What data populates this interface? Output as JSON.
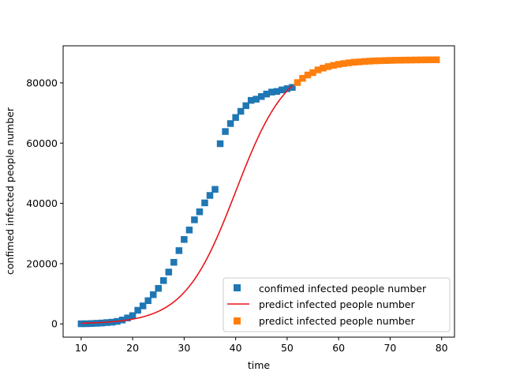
{
  "chart_data": {
    "type": "scatter",
    "xlabel": "time",
    "ylabel": "confimed infected people number",
    "xlim": [
      6.5,
      82.5
    ],
    "ylim": [
      -4400,
      92300
    ],
    "xticks": [
      10,
      20,
      30,
      40,
      50,
      60,
      70,
      80
    ],
    "yticks": [
      0,
      20000,
      40000,
      60000,
      80000
    ],
    "grid": false,
    "legend": "lower-right",
    "legend_entries": [
      {
        "label": "confimed infected people number",
        "marker": "square",
        "color": "#1f77b4"
      },
      {
        "label": "predict infected people number",
        "marker": "line",
        "color": "#e8161c"
      },
      {
        "label": "predict infected people number",
        "marker": "square",
        "color": "#ff7f0e"
      }
    ],
    "series": [
      {
        "kind": "scatter",
        "color": "#1f77b4",
        "x": [
          10,
          11,
          12,
          13,
          14,
          15,
          16,
          17,
          18,
          19,
          20,
          21,
          22,
          23,
          24,
          25,
          26,
          27,
          28,
          29,
          30,
          31,
          32,
          33,
          34,
          35,
          36,
          37,
          38,
          39,
          40,
          41,
          42,
          43,
          44,
          45,
          46,
          47,
          48,
          49,
          50,
          51
        ],
        "y": [
          45,
          62,
          121,
          198,
          291,
          440,
          571,
          830,
          1287,
          1975,
          2744,
          4515,
          5974,
          7711,
          9692,
          11791,
          14380,
          17205,
          20438,
          24324,
          28018,
          31161,
          34546,
          37198,
          40171,
          42638,
          44653,
          59804,
          63851,
          66492,
          68500,
          70548,
          72436,
          74185,
          74576,
          75465,
          76288,
          76936,
          77150,
          77658,
          78064,
          78497
        ]
      },
      {
        "kind": "line",
        "color": "#e8161c",
        "curve": "logistic",
        "x": [
          10,
          51
        ],
        "K": 87800,
        "r": 0.2,
        "t0": 40
      },
      {
        "kind": "scatter",
        "color": "#ff7f0e",
        "x": [
          52,
          53,
          54,
          55,
          56,
          57,
          58,
          59,
          60,
          61,
          62,
          63,
          64,
          65,
          66,
          67,
          68,
          69,
          70,
          71,
          72,
          73,
          74,
          75,
          76,
          77,
          78,
          79
        ],
        "y": [
          80100,
          81500,
          82600,
          83400,
          84300,
          84900,
          85400,
          85800,
          86150,
          86400,
          86650,
          86850,
          86950,
          87100,
          87200,
          87300,
          87350,
          87400,
          87450,
          87500,
          87520,
          87550,
          87570,
          87600,
          87620,
          87640,
          87650,
          87660
        ]
      }
    ]
  }
}
